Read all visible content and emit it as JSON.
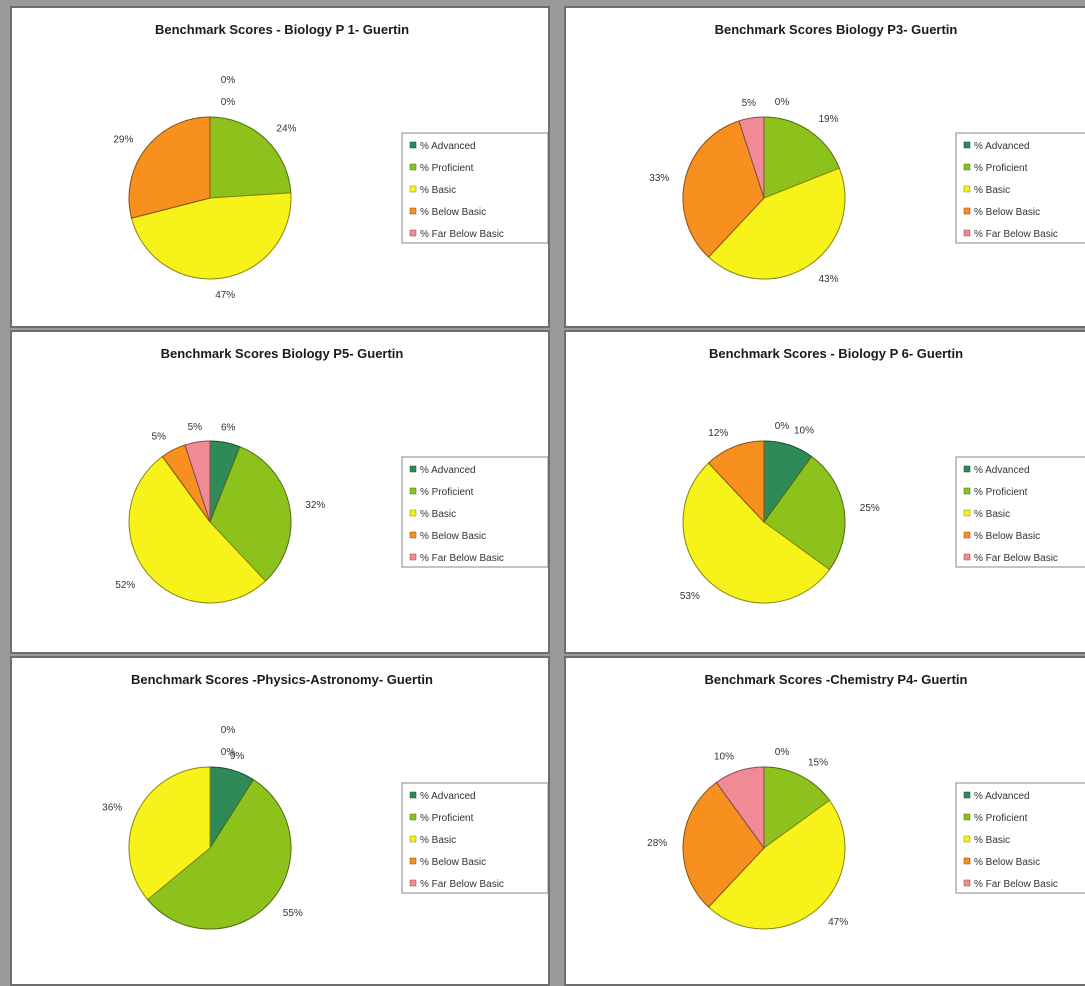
{
  "legend_labels": [
    "% Advanced",
    "% Proficient",
    "% Basic",
    "% Below Basic",
    "% Far Below Basic"
  ],
  "colors": [
    "#2e8b57",
    "#8cc21b",
    "#f7f21a",
    "#f7901e",
    "#f08a94"
  ],
  "chart_data": [
    {
      "type": "pie",
      "title": "Benchmark Scores - Biology P 1- Guertin",
      "categories": [
        "% Advanced",
        "% Proficient",
        "% Basic",
        "% Below Basic",
        "% Far Below Basic"
      ],
      "values": [
        0,
        24,
        47,
        29,
        0
      ],
      "labels": [
        "0%",
        "24%",
        "47%",
        "29%",
        "0%"
      ],
      "legend": "right"
    },
    {
      "type": "pie",
      "title": "Benchmark Scores Biology P3- Guertin",
      "categories": [
        "% Advanced",
        "% Proficient",
        "% Basic",
        "% Below Basic",
        "% Far Below Basic"
      ],
      "values": [
        0,
        19,
        43,
        33,
        5
      ],
      "labels": [
        "0%",
        "19%",
        "43%",
        "33%",
        "5%"
      ],
      "legend": "right"
    },
    {
      "type": "pie",
      "title": "Benchmark Scores Biology P5- Guertin",
      "categories": [
        "% Advanced",
        "% Proficient",
        "% Basic",
        "% Below Basic",
        "% Far Below Basic"
      ],
      "values": [
        6,
        32,
        52,
        5,
        5
      ],
      "labels": [
        "6%",
        "32%",
        "52%",
        "5%",
        "5%"
      ],
      "legend": "right"
    },
    {
      "type": "pie",
      "title": "Benchmark Scores - Biology P 6- Guertin",
      "categories": [
        "% Advanced",
        "% Proficient",
        "% Basic",
        "% Below Basic",
        "% Far Below Basic"
      ],
      "values": [
        10,
        25,
        53,
        12,
        0
      ],
      "labels": [
        "10%",
        "25%",
        "53%",
        "12%",
        "0%"
      ],
      "legend": "right"
    },
    {
      "type": "pie",
      "title": "Benchmark Scores -Physics-Astronomy- Guertin",
      "categories": [
        "% Advanced",
        "% Proficient",
        "% Basic",
        "% Below Basic",
        "% Far Below Basic"
      ],
      "values": [
        9,
        55,
        36,
        0,
        0
      ],
      "labels": [
        "9%",
        "55%",
        "36%",
        "0%",
        "0%"
      ],
      "legend": "right"
    },
    {
      "type": "pie",
      "title": "Benchmark Scores -Chemistry P4- Guertin",
      "categories": [
        "% Advanced",
        "% Proficient",
        "% Basic",
        "% Below Basic",
        "% Far Below Basic"
      ],
      "values": [
        0,
        15,
        47,
        28,
        10
      ],
      "labels": [
        "0%",
        "15%",
        "47%",
        "28%",
        "10%"
      ],
      "legend": "right"
    }
  ]
}
